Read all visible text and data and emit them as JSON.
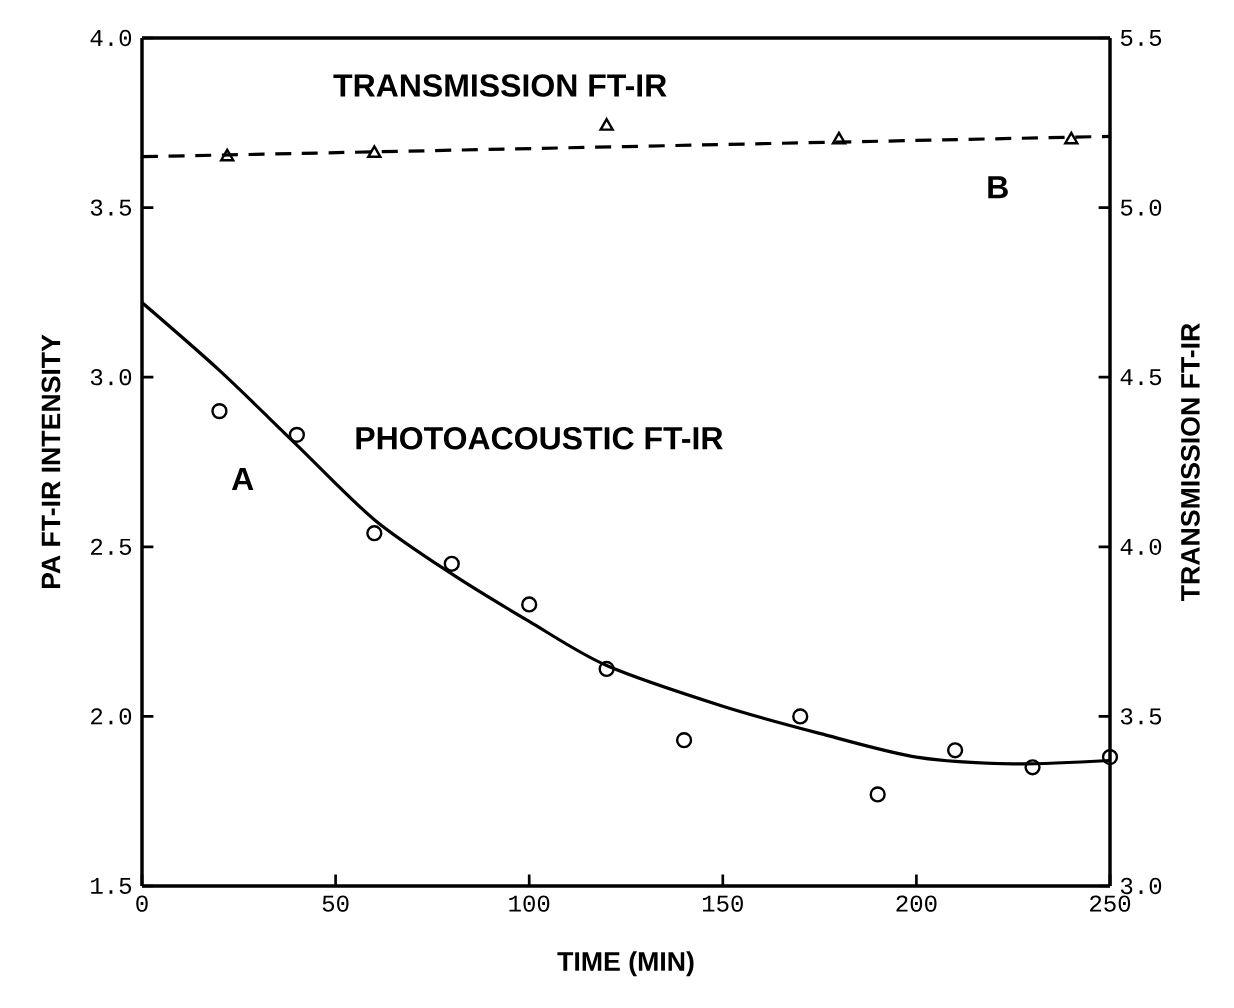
{
  "chart_data": {
    "type": "scatter",
    "xlabel": "TIME (MIN)",
    "ylabel": "PA FT-IR INTENSITY",
    "y2label": "TRANSMISSION FT-IR",
    "xlim": [
      0,
      250
    ],
    "xticks": [
      0,
      50,
      100,
      150,
      200,
      250
    ],
    "ylim": [
      1.5,
      4.0
    ],
    "yticks": [
      1.5,
      {
        "value": 2,
        "label": "2.0"
      },
      2.5,
      {
        "value": 3,
        "label": "3.0"
      },
      3.5,
      {
        "value": 4,
        "label": "4.0"
      }
    ],
    "y2lim": [
      3.0,
      5.5
    ],
    "y2ticks": [
      {
        "value": 3,
        "label": "3.0"
      },
      3.5,
      {
        "value": 4,
        "label": "4.0"
      },
      4.5,
      {
        "value": 5,
        "label": "5.0"
      },
      5.5
    ],
    "grid": false,
    "series": [
      {
        "marker": "circle",
        "color": "#000000",
        "x": [
          20,
          40,
          60,
          80,
          100,
          120,
          140,
          170,
          190,
          210,
          230,
          250
        ],
        "values": [
          2.9,
          2.83,
          2.54,
          2.45,
          2.33,
          2.14,
          1.93,
          2.0,
          1.77,
          1.9,
          1.85,
          1.88
        ]
      },
      {
        "type": "line",
        "line_style": "solid",
        "color": "#000000",
        "x": [
          0,
          20,
          40,
          60,
          80,
          100,
          120,
          150,
          175,
          200,
          225,
          250
        ],
        "values": [
          3.22,
          3.02,
          2.8,
          2.58,
          2.42,
          2.28,
          2.15,
          2.03,
          1.95,
          1.88,
          1.86,
          1.87
        ]
      },
      {
        "axis": "y2",
        "marker": "triangle",
        "color": "#000000",
        "x": [
          22,
          60,
          120,
          180,
          240
        ],
        "values": [
          5.15,
          5.16,
          5.24,
          5.2,
          5.2
        ]
      },
      {
        "type": "line",
        "axis": "y2",
        "line_style": "dashed",
        "color": "#000000",
        "x": [
          0,
          250
        ],
        "values": [
          5.15,
          5.21
        ]
      }
    ],
    "annotations": [
      "TRANSMISSION FT-IR",
      "B",
      "PHOTOACOUSTIC FT-IR",
      "A"
    ]
  }
}
